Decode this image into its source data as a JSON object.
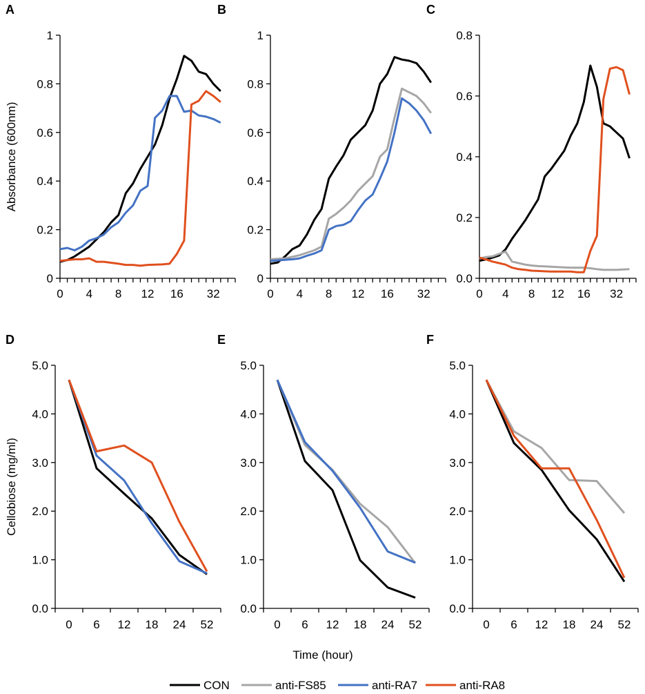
{
  "figure": {
    "x_axis_title": "Time (hour)",
    "legend": [
      {
        "key": "CON",
        "label": "CON",
        "color": "#000000"
      },
      {
        "key": "FS85",
        "label": "anti-FS85",
        "color": "#a6a6a6"
      },
      {
        "key": "RA7",
        "label": "anti-RA7",
        "color": "#4472c4"
      },
      {
        "key": "RA8",
        "label": "anti-RA8",
        "color": "#e0501e"
      }
    ]
  },
  "chart_data": [
    {
      "panel": "A",
      "type": "line",
      "ylabel": "Absorbance (600nm)",
      "xlabel": "",
      "x": [
        0,
        1,
        2,
        3,
        4,
        5,
        6,
        7,
        8,
        9,
        10,
        11,
        12,
        13,
        14,
        15,
        16,
        17,
        18,
        19,
        20,
        21,
        22,
        23,
        24
      ],
      "xticks": [
        "0",
        "4",
        "8",
        "12",
        "16",
        "32"
      ],
      "xtick_index": [
        0,
        4,
        8,
        12,
        16,
        21
      ],
      "ylim": [
        0,
        1
      ],
      "yticks": [
        "0",
        "0.2",
        "0.4",
        "0.6",
        "0.8",
        "1"
      ],
      "ytick_values": [
        0,
        0.2,
        0.4,
        0.6,
        0.8,
        1.0
      ],
      "series": [
        {
          "name": "CON",
          "values": [
            0.068,
            0.075,
            0.09,
            0.11,
            0.13,
            0.16,
            0.19,
            0.23,
            0.26,
            0.35,
            0.39,
            0.45,
            0.5,
            0.55,
            0.63,
            0.74,
            0.82,
            0.915,
            0.895,
            0.85,
            0.84,
            0.8,
            0.77,
            null,
            null
          ]
        },
        {
          "name": "anti-RA7",
          "values": [
            0.12,
            0.125,
            0.115,
            0.13,
            0.155,
            0.165,
            0.18,
            0.21,
            0.23,
            0.27,
            0.3,
            0.36,
            0.38,
            0.66,
            0.69,
            0.75,
            0.75,
            0.685,
            0.69,
            0.67,
            0.665,
            0.655,
            0.64,
            null,
            null
          ]
        },
        {
          "name": "anti-RA8",
          "values": [
            0.072,
            0.075,
            0.078,
            0.078,
            0.082,
            0.068,
            0.068,
            0.064,
            0.06,
            0.055,
            0.055,
            0.052,
            0.055,
            0.056,
            0.057,
            0.06,
            0.1,
            0.155,
            0.715,
            0.73,
            0.77,
            0.75,
            0.725,
            null,
            null
          ]
        }
      ]
    },
    {
      "panel": "B",
      "type": "line",
      "ylabel": "",
      "xlabel": "",
      "x": [
        0,
        1,
        2,
        3,
        4,
        5,
        6,
        7,
        8,
        9,
        10,
        11,
        12,
        13,
        14,
        15,
        16,
        17,
        18,
        19,
        20,
        21,
        22,
        23,
        24
      ],
      "xticks": [
        "0",
        "4",
        "8",
        "12",
        "16",
        "32"
      ],
      "xtick_index": [
        0,
        4,
        8,
        12,
        16,
        21
      ],
      "ylim": [
        0,
        1
      ],
      "yticks": [
        "0",
        "0.2",
        "0.4",
        "0.6",
        "0.8",
        "1"
      ],
      "ytick_values": [
        0,
        0.2,
        0.4,
        0.6,
        0.8,
        1.0
      ],
      "series": [
        {
          "name": "CON",
          "values": [
            0.06,
            0.065,
            0.09,
            0.12,
            0.135,
            0.18,
            0.24,
            0.285,
            0.41,
            0.46,
            0.505,
            0.57,
            0.6,
            0.63,
            0.69,
            0.8,
            0.84,
            0.91,
            0.9,
            0.895,
            0.885,
            0.85,
            0.805,
            null,
            null
          ]
        },
        {
          "name": "anti-FS85",
          "values": [
            0.078,
            0.08,
            0.082,
            0.088,
            0.095,
            0.105,
            0.115,
            0.13,
            0.245,
            0.265,
            0.29,
            0.32,
            0.36,
            0.39,
            0.42,
            0.5,
            0.53,
            0.66,
            0.78,
            0.765,
            0.75,
            0.72,
            0.68,
            null,
            null
          ]
        },
        {
          "name": "anti-RA7",
          "values": [
            0.072,
            0.074,
            0.076,
            0.078,
            0.082,
            0.093,
            0.102,
            0.115,
            0.2,
            0.215,
            0.22,
            0.235,
            0.28,
            0.32,
            0.345,
            0.41,
            0.48,
            0.6,
            0.74,
            0.72,
            0.69,
            0.65,
            0.595,
            null,
            null
          ]
        }
      ]
    },
    {
      "panel": "C",
      "type": "line",
      "ylabel": "",
      "xlabel": "",
      "x": [
        0,
        1,
        2,
        3,
        4,
        5,
        6,
        7,
        8,
        9,
        10,
        11,
        12,
        13,
        14,
        15,
        16,
        17,
        18,
        19,
        20,
        21,
        22,
        23,
        24
      ],
      "xticks": [
        "0",
        "4",
        "8",
        "12",
        "16",
        "32"
      ],
      "xtick_index": [
        0,
        4,
        8,
        12,
        16,
        21
      ],
      "ylim": [
        0,
        0.8
      ],
      "yticks": [
        "0.0",
        "0.2",
        "0.4",
        "0.6",
        "0.8"
      ],
      "ytick_values": [
        0,
        0.2,
        0.4,
        0.6,
        0.8
      ],
      "series": [
        {
          "name": "CON",
          "values": [
            0.058,
            0.062,
            0.068,
            0.075,
            0.095,
            0.13,
            0.16,
            0.19,
            0.225,
            0.26,
            0.335,
            0.36,
            0.39,
            0.42,
            0.47,
            0.51,
            0.58,
            0.7,
            0.63,
            0.51,
            0.5,
            0.48,
            0.46,
            0.395,
            null
          ]
        },
        {
          "name": "anti-FS85",
          "values": [
            0.065,
            0.07,
            0.072,
            0.08,
            0.088,
            0.055,
            0.05,
            0.045,
            0.042,
            0.04,
            0.039,
            0.038,
            0.037,
            0.036,
            0.035,
            0.035,
            0.035,
            0.033,
            0.03,
            0.028,
            0.028,
            0.028,
            0.029,
            0.03,
            null
          ]
        },
        {
          "name": "anti-RA8",
          "values": [
            0.068,
            0.062,
            0.055,
            0.05,
            0.045,
            0.035,
            0.03,
            0.028,
            0.025,
            0.024,
            0.023,
            0.022,
            0.022,
            0.022,
            0.022,
            0.02,
            0.02,
            0.09,
            0.14,
            0.59,
            0.69,
            0.695,
            0.685,
            0.605,
            null
          ]
        }
      ]
    },
    {
      "panel": "D",
      "type": "line",
      "ylabel": "Cellobiose (mg/ml)",
      "xlabel": "",
      "x": [
        "0",
        "6",
        "12",
        "18",
        "24",
        "52"
      ],
      "xticks": [
        "0",
        "6",
        "12",
        "18",
        "24",
        "52"
      ],
      "ylim": [
        0,
        5
      ],
      "yticks": [
        "0.0",
        "1.0",
        "2.0",
        "3.0",
        "4.0",
        "5.0"
      ],
      "ytick_values": [
        0,
        1,
        2,
        3,
        4,
        5
      ],
      "series": [
        {
          "name": "CON",
          "values": [
            4.7,
            2.88,
            2.36,
            1.85,
            1.1,
            0.7
          ]
        },
        {
          "name": "anti-RA7",
          "values": [
            4.7,
            3.14,
            2.63,
            1.75,
            0.97,
            0.72
          ]
        },
        {
          "name": "anti-RA8",
          "values": [
            4.7,
            3.23,
            3.35,
            3.0,
            1.78,
            0.76
          ]
        }
      ]
    },
    {
      "panel": "E",
      "type": "line",
      "ylabel": "",
      "xlabel": "",
      "x": [
        "0",
        "6",
        "12",
        "18",
        "24",
        "52"
      ],
      "xticks": [
        "0",
        "6",
        "12",
        "18",
        "24",
        "52"
      ],
      "ylim": [
        0,
        5
      ],
      "yticks": [
        "0.0",
        "1.0",
        "2.0",
        "3.0",
        "4.0",
        "5.0"
      ],
      "ytick_values": [
        0,
        1,
        2,
        3,
        4,
        5
      ],
      "series": [
        {
          "name": "CON",
          "values": [
            4.7,
            3.03,
            2.43,
            0.99,
            0.43,
            0.22
          ]
        },
        {
          "name": "anti-FS85",
          "values": [
            4.7,
            3.36,
            2.85,
            2.15,
            1.67,
            0.93
          ]
        },
        {
          "name": "anti-RA7",
          "values": [
            4.7,
            3.42,
            2.83,
            2.07,
            1.17,
            0.94
          ]
        }
      ]
    },
    {
      "panel": "F",
      "type": "line",
      "ylabel": "",
      "xlabel": "",
      "x": [
        "0",
        "6",
        "12",
        "18",
        "24",
        "52"
      ],
      "xticks": [
        "0",
        "6",
        "12",
        "18",
        "24",
        "52"
      ],
      "ylim": [
        0,
        5
      ],
      "yticks": [
        "0.0",
        "1.0",
        "2.0",
        "3.0",
        "4.0",
        "5.0"
      ],
      "ytick_values": [
        0,
        1,
        2,
        3,
        4,
        5
      ],
      "series": [
        {
          "name": "CON",
          "values": [
            4.7,
            3.4,
            2.85,
            2.02,
            1.42,
            0.55
          ]
        },
        {
          "name": "anti-FS85",
          "values": [
            4.7,
            3.64,
            3.3,
            2.64,
            2.62,
            1.96
          ]
        },
        {
          "name": "anti-RA8",
          "values": [
            4.7,
            3.55,
            2.88,
            2.88,
            1.82,
            0.63
          ]
        }
      ]
    }
  ]
}
